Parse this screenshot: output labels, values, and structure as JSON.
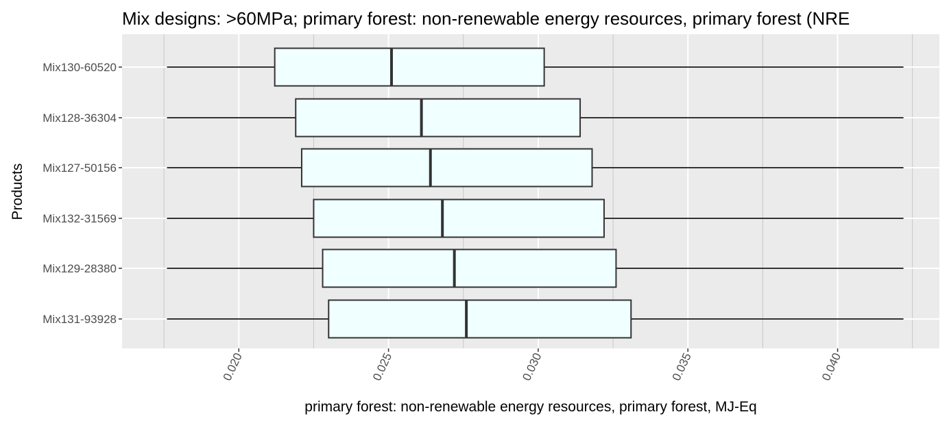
{
  "chart_data": {
    "type": "boxplot",
    "orientation": "horizontal",
    "title": "Mix designs: >60MPa; primary forest: non-renewable energy resources, primary forest (NRE",
    "xlabel": "primary forest: non-renewable energy resources, primary forest, MJ-Eq",
    "ylabel": "Products",
    "xlim": [
      0.0161,
      0.0434
    ],
    "x_ticks": [
      0.02,
      0.025,
      0.03,
      0.035,
      0.04
    ],
    "x_tick_labels": [
      "0.020",
      "0.025",
      "0.030",
      "0.035",
      "0.040"
    ],
    "grid": true,
    "categories": [
      "Mix130-60520",
      "Mix128-36304",
      "Mix127-50156",
      "Mix132-31569",
      "Mix129-28380",
      "Mix131-93928"
    ],
    "series": [
      {
        "category": "Mix130-60520",
        "min": 0.0176,
        "q1": 0.0212,
        "median": 0.0251,
        "q3": 0.0302,
        "max": 0.0422
      },
      {
        "category": "Mix128-36304",
        "min": 0.0176,
        "q1": 0.0219,
        "median": 0.0261,
        "q3": 0.0314,
        "max": 0.0422
      },
      {
        "category": "Mix127-50156",
        "min": 0.0176,
        "q1": 0.0221,
        "median": 0.0264,
        "q3": 0.0318,
        "max": 0.0422
      },
      {
        "category": "Mix132-31569",
        "min": 0.0176,
        "q1": 0.0225,
        "median": 0.0268,
        "q3": 0.0322,
        "max": 0.0422
      },
      {
        "category": "Mix129-28380",
        "min": 0.0176,
        "q1": 0.0228,
        "median": 0.0272,
        "q3": 0.0326,
        "max": 0.0422
      },
      {
        "category": "Mix131-93928",
        "min": 0.0176,
        "q1": 0.023,
        "median": 0.0276,
        "q3": 0.0331,
        "max": 0.0422
      }
    ],
    "colors": {
      "panel": "#ebebeb",
      "grid_major": "#ffffff",
      "grid_minor": "#c7c7c7",
      "box_fill": "#f0ffff",
      "box_stroke": "#333333",
      "tick_text": "#4d4d4d"
    }
  }
}
